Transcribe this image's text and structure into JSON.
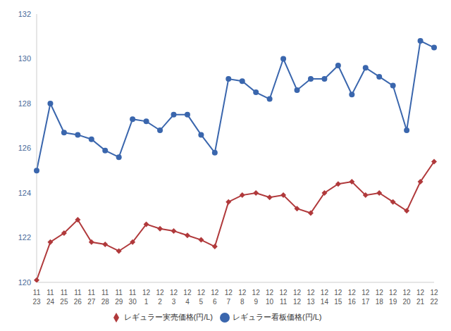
{
  "chart_data": {
    "type": "line",
    "categories": [
      "11\n23",
      "11\n24",
      "11\n25",
      "11\n26",
      "11\n27",
      "11\n28",
      "11\n29",
      "11\n30",
      "12\n1",
      "12\n2",
      "12\n3",
      "12\n4",
      "12\n5",
      "12\n6",
      "12\n7",
      "12\n8",
      "12\n9",
      "12\n10",
      "12\n11",
      "12\n12",
      "12\n13",
      "12\n14",
      "12\n15",
      "12\n16",
      "12\n17",
      "12\n18",
      "12\n19",
      "12\n20",
      "12\n21",
      "12\n22"
    ],
    "series": [
      {
        "name": "レギュラー看板価格(円/L)",
        "color": "#3a66ad",
        "marker": "circle",
        "values": [
          125.0,
          128.0,
          126.7,
          126.6,
          126.4,
          125.9,
          125.6,
          127.3,
          127.2,
          126.8,
          127.5,
          127.5,
          126.6,
          125.8,
          129.1,
          129.0,
          128.5,
          128.2,
          130.0,
          128.6,
          129.1,
          129.1,
          129.7,
          128.4,
          129.6,
          129.2,
          128.8,
          126.8,
          130.8,
          130.5
        ]
      },
      {
        "name": "レギュラー実売価格(円/L)",
        "color": "#b0393b",
        "marker": "diamond",
        "values": [
          120.1,
          121.8,
          122.2,
          122.8,
          121.8,
          121.7,
          121.4,
          121.8,
          122.6,
          122.4,
          122.3,
          122.1,
          121.9,
          121.6,
          123.6,
          123.9,
          124.0,
          123.8,
          123.9,
          123.3,
          123.1,
          124.0,
          124.4,
          124.5,
          123.9,
          124.0,
          123.6,
          123.2,
          124.5,
          125.4
        ]
      }
    ],
    "ylim": [
      120,
      132
    ],
    "yticks": [
      120,
      122,
      124,
      126,
      128,
      130,
      132
    ],
    "grid": false,
    "legend": "bottom"
  }
}
